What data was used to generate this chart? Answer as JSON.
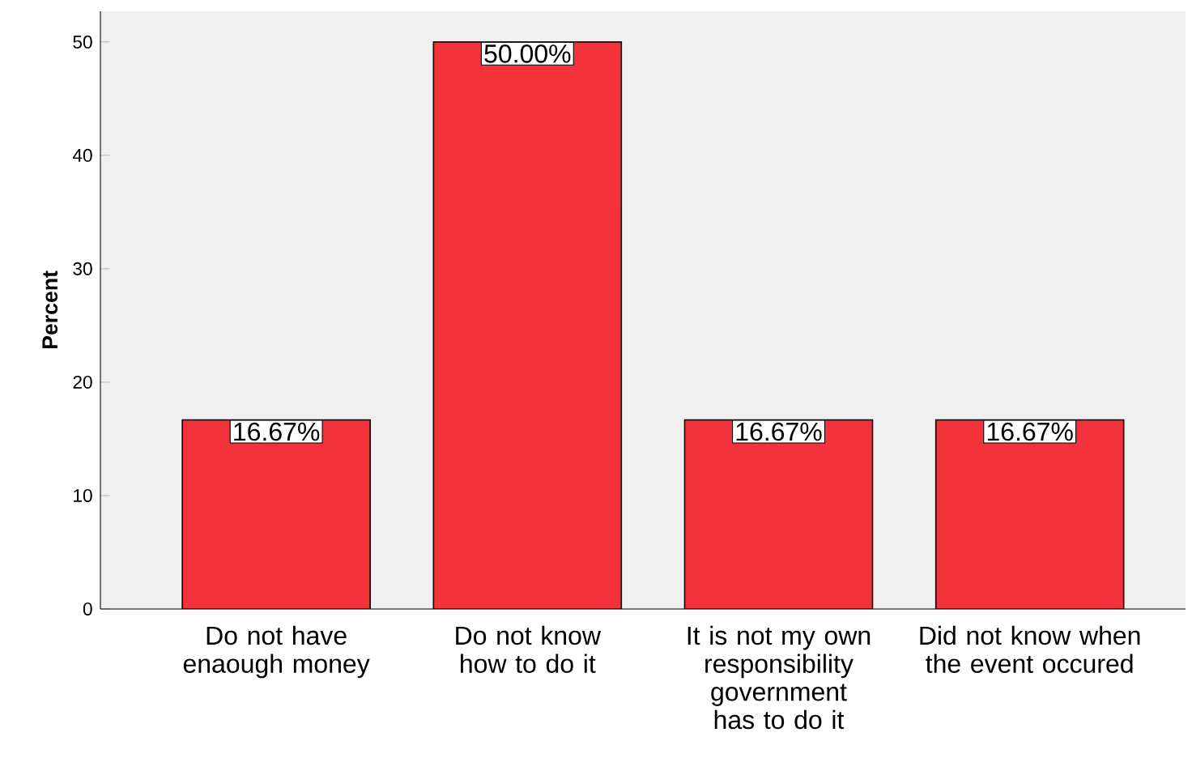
{
  "chart_data": {
    "type": "bar",
    "ylabel": "Percent",
    "categories": [
      "Do not have enaough money",
      "Do not know how to do it",
      "It is not my own responsibility government has to do it",
      "Did not know when the event occured"
    ],
    "values": [
      16.67,
      50.0,
      16.67,
      16.67
    ],
    "value_labels": [
      "16.67%",
      "50.00%",
      "16.67%",
      "16.67%"
    ],
    "color": "#f2333b",
    "ylim": [
      0,
      52.7
    ],
    "yticks": [
      0,
      10,
      20,
      30,
      40,
      50
    ]
  }
}
